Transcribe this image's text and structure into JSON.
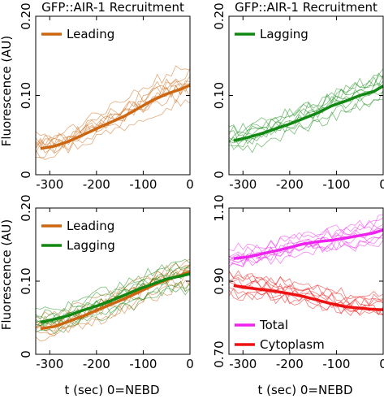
{
  "ylabel": "Fluorescence (AU)",
  "xlabel": "t (sec) 0=NEBD",
  "chart_data": [
    {
      "type": "line",
      "title": "GFP::AIR-1 Recruitment",
      "xlim": [
        -330,
        0
      ],
      "ylim": [
        0,
        0.2
      ],
      "x_ticks": [
        -300,
        -200,
        -100,
        0
      ],
      "y_ticks": [
        0,
        0.1,
        0.2
      ],
      "y_tick_labels": [
        "0",
        "0.10",
        "0.20"
      ],
      "legend": "top-left",
      "series": [
        {
          "name": "Leading",
          "color": "#cc6611",
          "x": [
            -320,
            -290,
            -260,
            -230,
            -200,
            -170,
            -140,
            -110,
            -80,
            -50,
            -20,
            0
          ],
          "values": [
            0.033,
            0.036,
            0.042,
            0.05,
            0.058,
            0.066,
            0.074,
            0.084,
            0.094,
            0.102,
            0.108,
            0.113
          ]
        }
      ]
    },
    {
      "type": "line",
      "title": "GFP::AIR-1 Recruitment",
      "xlim": [
        -330,
        0
      ],
      "ylim": [
        0,
        0.2
      ],
      "x_ticks": [
        -300,
        -200,
        -100,
        0
      ],
      "y_ticks": [
        0,
        0.1,
        0.2
      ],
      "y_tick_labels": [
        "0",
        "0.10",
        "0.20"
      ],
      "legend": "top-left",
      "series": [
        {
          "name": "Lagging",
          "color": "#118811",
          "x": [
            -320,
            -290,
            -260,
            -230,
            -200,
            -170,
            -140,
            -110,
            -80,
            -50,
            -20,
            0
          ],
          "values": [
            0.043,
            0.047,
            0.052,
            0.058,
            0.064,
            0.071,
            0.078,
            0.087,
            0.093,
            0.1,
            0.105,
            0.112
          ]
        }
      ]
    },
    {
      "type": "line",
      "xlim": [
        -330,
        0
      ],
      "ylim": [
        0,
        0.2
      ],
      "x_ticks": [
        -300,
        -200,
        -100,
        0
      ],
      "y_ticks": [
        0,
        0.1,
        0.2
      ],
      "y_tick_labels": [
        "0",
        "0.10",
        "0.20"
      ],
      "legend": "top-left",
      "series": [
        {
          "name": "Leading",
          "color": "#cc6611",
          "x": [
            -320,
            -290,
            -260,
            -230,
            -200,
            -170,
            -140,
            -110,
            -80,
            -50,
            -20,
            0
          ],
          "values": [
            0.035,
            0.038,
            0.045,
            0.052,
            0.06,
            0.068,
            0.076,
            0.085,
            0.094,
            0.102,
            0.108,
            0.113
          ]
        },
        {
          "name": "Lagging",
          "color": "#118811",
          "x": [
            -320,
            -290,
            -260,
            -230,
            -200,
            -170,
            -140,
            -110,
            -80,
            -50,
            -20,
            0
          ],
          "values": [
            0.044,
            0.048,
            0.053,
            0.06,
            0.066,
            0.073,
            0.081,
            0.089,
            0.096,
            0.103,
            0.107,
            0.11
          ]
        }
      ]
    },
    {
      "type": "line",
      "xlim": [
        -330,
        0
      ],
      "ylim": [
        0.7,
        1.1
      ],
      "x_ticks": [
        -300,
        -200,
        -100,
        0
      ],
      "y_ticks": [
        0.7,
        0.9,
        1.1
      ],
      "y_tick_labels": [
        "0.70",
        "0.90",
        "1.10"
      ],
      "legend": "bottom-left",
      "series": [
        {
          "name": "Total",
          "color": "#ee22ee",
          "x": [
            -320,
            -290,
            -260,
            -230,
            -200,
            -170,
            -140,
            -110,
            -80,
            -50,
            -20,
            0
          ],
          "values": [
            0.962,
            0.966,
            0.975,
            0.983,
            0.992,
            1.002,
            1.008,
            1.012,
            1.018,
            1.025,
            1.032,
            1.04
          ]
        },
        {
          "name": "Cytoplasm",
          "color": "#ee1111",
          "x": [
            -320,
            -290,
            -260,
            -230,
            -200,
            -170,
            -140,
            -110,
            -80,
            -50,
            -20,
            0
          ],
          "values": [
            0.888,
            0.882,
            0.877,
            0.872,
            0.866,
            0.858,
            0.848,
            0.838,
            0.83,
            0.826,
            0.823,
            0.822
          ]
        }
      ]
    }
  ]
}
